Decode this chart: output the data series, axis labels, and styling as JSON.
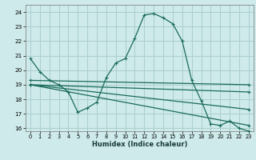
{
  "xlabel": "Humidex (Indice chaleur)",
  "bg_color": "#ceeaea",
  "grid_color": "#aacfcf",
  "line_color": "#1a6b5a",
  "xlim": [
    -0.5,
    23.5
  ],
  "ylim": [
    15.8,
    24.5
  ],
  "yticks": [
    16,
    17,
    18,
    19,
    20,
    21,
    22,
    23,
    24
  ],
  "xticks": [
    0,
    1,
    2,
    3,
    4,
    5,
    6,
    7,
    8,
    9,
    10,
    11,
    12,
    13,
    14,
    15,
    16,
    17,
    18,
    19,
    20,
    21,
    22,
    23
  ],
  "main_curve": {
    "x": [
      0,
      1,
      2,
      3,
      4,
      5,
      6,
      7,
      8,
      9,
      10,
      11,
      12,
      13,
      14,
      15,
      16,
      17,
      18,
      19,
      20,
      21,
      22,
      23
    ],
    "y": [
      20.8,
      19.9,
      19.3,
      19.0,
      18.5,
      17.1,
      17.4,
      17.8,
      19.5,
      20.5,
      20.8,
      22.2,
      23.8,
      23.9,
      23.6,
      23.2,
      22.0,
      19.3,
      17.9,
      16.3,
      16.2,
      16.5,
      16.0,
      15.8
    ]
  },
  "straight_lines": [
    {
      "x0": 0,
      "y0": 19.0,
      "x1": 23,
      "y1": 18.5
    },
    {
      "x0": 0,
      "y0": 19.0,
      "x1": 23,
      "y1": 17.3
    },
    {
      "x0": 0,
      "y0": 19.0,
      "x1": 23,
      "y1": 16.2
    },
    {
      "x0": 0,
      "y0": 19.3,
      "x1": 23,
      "y1": 19.0
    }
  ]
}
